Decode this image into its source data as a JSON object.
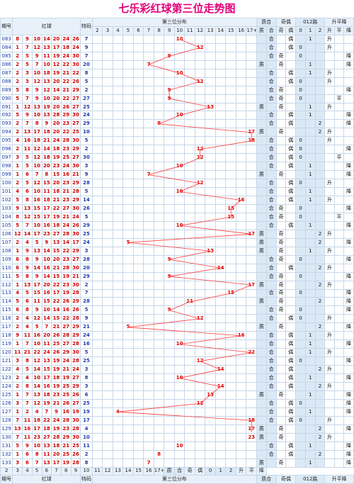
{
  "title": "七乐彩红球第三位走势图",
  "headers": {
    "issue": "期号",
    "red": "红球",
    "special": "特码",
    "dist": "第三位分布",
    "zhihe": "质合",
    "jiou": "奇偶",
    "lu": "012路",
    "trend": "升平降"
  },
  "subheaders": {
    "numbers": [
      "2",
      "3",
      "4",
      "5",
      "6",
      "7",
      "8",
      "9",
      "10",
      "11",
      "12",
      "13",
      "14",
      "15",
      "16",
      "17+"
    ],
    "zhihe": [
      "质",
      "合"
    ],
    "jiou": [
      "奇",
      "偶"
    ],
    "lu": [
      "0",
      "1",
      "2"
    ],
    "trend": [
      "升",
      "平",
      "降"
    ]
  },
  "rows": [
    {
      "issue": "083",
      "reds": [
        "8",
        "9",
        "10",
        "14",
        "20",
        "24",
        "26"
      ],
      "sp": "7",
      "pos": 10,
      "zh": "合",
      "jo": "偶",
      "lu": "1",
      "tr": "升"
    },
    {
      "issue": "084",
      "reds": [
        "1",
        "7",
        "12",
        "13",
        "17",
        "18",
        "24"
      ],
      "sp": "9",
      "pos": 12,
      "zh": "合",
      "jo": "偶",
      "lu": "0",
      "tr": "升"
    },
    {
      "issue": "085",
      "reds": [
        "2",
        "5",
        "9",
        "11",
        "19",
        "24",
        "30"
      ],
      "sp": "7",
      "pos": 9,
      "zh": "合",
      "jo": "奇",
      "lu": "0",
      "tr": "降"
    },
    {
      "issue": "086",
      "reds": [
        "2",
        "5",
        "7",
        "10",
        "12",
        "22",
        "30"
      ],
      "sp": "20",
      "pos": 7,
      "zh": "质",
      "jo": "奇",
      "lu": "1",
      "tr": "降"
    },
    {
      "issue": "087",
      "reds": [
        "2",
        "3",
        "10",
        "18",
        "19",
        "21",
        "22"
      ],
      "sp": "8",
      "pos": 10,
      "zh": "合",
      "jo": "偶",
      "lu": "1",
      "tr": "升"
    },
    {
      "issue": "088",
      "reds": [
        "2",
        "3",
        "12",
        "13",
        "20",
        "22",
        "26"
      ],
      "sp": "5",
      "pos": 12,
      "zh": "合",
      "jo": "偶",
      "lu": "0",
      "tr": "升"
    },
    {
      "issue": "089",
      "reds": [
        "5",
        "8",
        "9",
        "12",
        "14",
        "21",
        "29"
      ],
      "sp": "2",
      "pos": 9,
      "zh": "合",
      "jo": "奇",
      "lu": "0",
      "tr": "降"
    },
    {
      "issue": "090",
      "reds": [
        "5",
        "7",
        "9",
        "10",
        "20",
        "22",
        "27"
      ],
      "sp": "27",
      "pos": 9,
      "zh": "合",
      "jo": "奇",
      "lu": "0",
      "tr": "平"
    },
    {
      "issue": "091",
      "reds": [
        "1",
        "12",
        "13",
        "19",
        "20",
        "26",
        "27"
      ],
      "sp": "25",
      "pos": 13,
      "zh": "质",
      "jo": "奇",
      "lu": "1",
      "tr": "升"
    },
    {
      "issue": "092",
      "reds": [
        "5",
        "9",
        "10",
        "13",
        "28",
        "29",
        "30"
      ],
      "sp": "24",
      "pos": 10,
      "zh": "合",
      "jo": "偶",
      "lu": "1",
      "tr": "降"
    },
    {
      "issue": "093",
      "reds": [
        "2",
        "7",
        "8",
        "9",
        "20",
        "23",
        "27"
      ],
      "sp": "29",
      "pos": 8,
      "zh": "合",
      "jo": "偶",
      "lu": "2",
      "tr": "降"
    },
    {
      "issue": "094",
      "reds": [
        "2",
        "13",
        "17",
        "18",
        "20",
        "22",
        "25"
      ],
      "sp": "10",
      "pos": 17,
      "zh": "质",
      "jo": "奇",
      "lu": "2",
      "tr": "升"
    },
    {
      "issue": "095",
      "reds": [
        "4",
        "16",
        "18",
        "21",
        "24",
        "28",
        "30"
      ],
      "sp": "5",
      "pos": 18,
      "zh": "合",
      "jo": "偶",
      "lu": "0",
      "tr": "升"
    },
    {
      "issue": "096",
      "reds": [
        "2",
        "11",
        "12",
        "14",
        "18",
        "23",
        "29"
      ],
      "sp": "2",
      "pos": 12,
      "zh": "合",
      "jo": "偶",
      "lu": "0",
      "tr": "降"
    },
    {
      "issue": "097",
      "reds": [
        "3",
        "5",
        "12",
        "18",
        "19",
        "25",
        "27"
      ],
      "sp": "30",
      "pos": 12,
      "zh": "合",
      "jo": "偶",
      "lu": "0",
      "tr": "平"
    },
    {
      "issue": "098",
      "reds": [
        "1",
        "5",
        "10",
        "20",
        "23",
        "24",
        "30"
      ],
      "sp": "3",
      "pos": 10,
      "zh": "合",
      "jo": "偶",
      "lu": "1",
      "tr": "降"
    },
    {
      "issue": "099",
      "reds": [
        "1",
        "6",
        "7",
        "8",
        "15",
        "16",
        "21"
      ],
      "sp": "9",
      "pos": 7,
      "zh": "质",
      "jo": "奇",
      "lu": "1",
      "tr": "降"
    },
    {
      "issue": "100",
      "reds": [
        "2",
        "5",
        "12",
        "15",
        "20",
        "23",
        "29"
      ],
      "sp": "28",
      "pos": 12,
      "zh": "合",
      "jo": "偶",
      "lu": "0",
      "tr": "升"
    },
    {
      "issue": "101",
      "reds": [
        "4",
        "6",
        "10",
        "11",
        "18",
        "21",
        "28"
      ],
      "sp": "5",
      "pos": 10,
      "zh": "合",
      "jo": "偶",
      "lu": "1",
      "tr": "降"
    },
    {
      "issue": "102",
      "reds": [
        "5",
        "8",
        "16",
        "18",
        "21",
        "23",
        "29"
      ],
      "sp": "14",
      "pos": 16,
      "zh": "合",
      "jo": "偶",
      "lu": "1",
      "tr": "升"
    },
    {
      "issue": "103",
      "reds": [
        "9",
        "13",
        "15",
        "17",
        "22",
        "27",
        "30"
      ],
      "sp": "26",
      "pos": 15,
      "zh": "合",
      "jo": "奇",
      "lu": "0",
      "tr": "降"
    },
    {
      "issue": "104",
      "reds": [
        "8",
        "12",
        "15",
        "17",
        "19",
        "21",
        "24"
      ],
      "sp": "5",
      "pos": 15,
      "zh": "合",
      "jo": "奇",
      "lu": "0",
      "tr": "平"
    },
    {
      "issue": "105",
      "reds": [
        "5",
        "7",
        "10",
        "16",
        "18",
        "24",
        "26"
      ],
      "sp": "29",
      "pos": 10,
      "zh": "合",
      "jo": "偶",
      "lu": "1",
      "tr": "降"
    },
    {
      "issue": "106",
      "reds": [
        "12",
        "14",
        "17",
        "23",
        "27",
        "28",
        "30"
      ],
      "sp": "25",
      "pos": 17,
      "zh": "质",
      "jo": "奇",
      "lu": "2",
      "tr": "升"
    },
    {
      "issue": "107",
      "reds": [
        "2",
        "4",
        "5",
        "9",
        "13",
        "14",
        "17"
      ],
      "sp": "24",
      "pos": 5,
      "zh": "质",
      "jo": "奇",
      "lu": "2",
      "tr": "降"
    },
    {
      "issue": "108",
      "reds": [
        "1",
        "9",
        "13",
        "14",
        "15",
        "22",
        "29"
      ],
      "sp": "3",
      "pos": 13,
      "zh": "质",
      "jo": "奇",
      "lu": "1",
      "tr": "升"
    },
    {
      "issue": "109",
      "reds": [
        "6",
        "8",
        "9",
        "10",
        "20",
        "23",
        "27"
      ],
      "sp": "28",
      "pos": 9,
      "zh": "合",
      "jo": "奇",
      "lu": "0",
      "tr": "降"
    },
    {
      "issue": "110",
      "reds": [
        "6",
        "9",
        "14",
        "16",
        "21",
        "28",
        "30"
      ],
      "sp": "20",
      "pos": 14,
      "zh": "合",
      "jo": "偶",
      "lu": "2",
      "tr": "升"
    },
    {
      "issue": "111",
      "reds": [
        "5",
        "8",
        "9",
        "14",
        "15",
        "19",
        "21"
      ],
      "sp": "29",
      "pos": 9,
      "zh": "合",
      "jo": "奇",
      "lu": "0",
      "tr": "降"
    },
    {
      "issue": "112",
      "reds": [
        "1",
        "13",
        "17",
        "20",
        "22",
        "23",
        "30"
      ],
      "sp": "2",
      "pos": 17,
      "zh": "质",
      "jo": "奇",
      "lu": "2",
      "tr": "升"
    },
    {
      "issue": "113",
      "reds": [
        "4",
        "5",
        "15",
        "16",
        "17",
        "19",
        "28"
      ],
      "sp": "7",
      "pos": 15,
      "zh": "合",
      "jo": "奇",
      "lu": "0",
      "tr": "降"
    },
    {
      "issue": "114",
      "reds": [
        "5",
        "6",
        "11",
        "15",
        "22",
        "26",
        "29"
      ],
      "sp": "28",
      "pos": 11,
      "zh": "质",
      "jo": "奇",
      "lu": "2",
      "tr": "降"
    },
    {
      "issue": "115",
      "reds": [
        "6",
        "8",
        "9",
        "10",
        "14",
        "16",
        "26"
      ],
      "sp": "5",
      "pos": 9,
      "zh": "合",
      "jo": "奇",
      "lu": "0",
      "tr": "降"
    },
    {
      "issue": "116",
      "reds": [
        "2",
        "4",
        "12",
        "14",
        "15",
        "22",
        "28"
      ],
      "sp": "9",
      "pos": 12,
      "zh": "合",
      "jo": "偶",
      "lu": "0",
      "tr": "升"
    },
    {
      "issue": "117",
      "reds": [
        "2",
        "4",
        "5",
        "7",
        "21",
        "27",
        "29"
      ],
      "sp": "21",
      "pos": 5,
      "zh": "质",
      "jo": "奇",
      "lu": "2",
      "tr": "降"
    },
    {
      "issue": "118",
      "reds": [
        "9",
        "11",
        "16",
        "20",
        "26",
        "28",
        "29"
      ],
      "sp": "24",
      "pos": 16,
      "zh": "合",
      "jo": "偶",
      "lu": "1",
      "tr": "升"
    },
    {
      "issue": "119",
      "reds": [
        "1",
        "7",
        "10",
        "11",
        "25",
        "27",
        "28"
      ],
      "sp": "16",
      "pos": 10,
      "zh": "合",
      "jo": "偶",
      "lu": "1",
      "tr": "降"
    },
    {
      "issue": "120",
      "reds": [
        "11",
        "21",
        "22",
        "24",
        "26",
        "29",
        "30"
      ],
      "sp": "5",
      "pos": 22,
      "zh": "合",
      "jo": "偶",
      "lu": "1",
      "tr": "升"
    },
    {
      "issue": "121",
      "reds": [
        "3",
        "8",
        "12",
        "13",
        "19",
        "24",
        "28"
      ],
      "sp": "25",
      "pos": 12,
      "zh": "合",
      "jo": "偶",
      "lu": "0",
      "tr": "降"
    },
    {
      "issue": "122",
      "reds": [
        "4",
        "5",
        "14",
        "15",
        "19",
        "21",
        "24"
      ],
      "sp": "3",
      "pos": 14,
      "zh": "合",
      "jo": "偶",
      "lu": "2",
      "tr": "升"
    },
    {
      "issue": "123",
      "reds": [
        "2",
        "4",
        "10",
        "17",
        "18",
        "19",
        "27"
      ],
      "sp": "8",
      "pos": 10,
      "zh": "合",
      "jo": "偶",
      "lu": "1",
      "tr": "降"
    },
    {
      "issue": "124",
      "reds": [
        "2",
        "8",
        "14",
        "16",
        "19",
        "25",
        "29"
      ],
      "sp": "3",
      "pos": 14,
      "zh": "合",
      "jo": "偶",
      "lu": "2",
      "tr": "升"
    },
    {
      "issue": "125",
      "reds": [
        "1",
        "7",
        "13",
        "18",
        "23",
        "25",
        "26"
      ],
      "sp": "6",
      "pos": 13,
      "zh": "质",
      "jo": "奇",
      "lu": "1",
      "tr": "降"
    },
    {
      "issue": "126",
      "reds": [
        "3",
        "7",
        "12",
        "19",
        "21",
        "26",
        "27"
      ],
      "sp": "25",
      "pos": 12,
      "zh": "合",
      "jo": "偶",
      "lu": "0",
      "tr": "降"
    },
    {
      "issue": "127",
      "reds": [
        "1",
        "2",
        "4",
        "7",
        "9",
        "16",
        "19"
      ],
      "sp": "19",
      "pos": 4,
      "zh": "合",
      "jo": "偶",
      "lu": "1",
      "tr": "降"
    },
    {
      "issue": "128",
      "reds": [
        "7",
        "11",
        "18",
        "22",
        "24",
        "28",
        "30"
      ],
      "sp": "17",
      "pos": 18,
      "zh": "合",
      "jo": "偶",
      "lu": "0",
      "tr": "升"
    },
    {
      "issue": "129",
      "reds": [
        "13",
        "16",
        "17",
        "18",
        "19",
        "23",
        "28"
      ],
      "sp": "4",
      "pos": 17,
      "zh": "质",
      "jo": "奇",
      "lu": "2",
      "tr": "降"
    },
    {
      "issue": "130",
      "reds": [
        "7",
        "11",
        "23",
        "27",
        "28",
        "29",
        "30"
      ],
      "sp": "10",
      "pos": 23,
      "zh": "质",
      "jo": "奇",
      "lu": "2",
      "tr": "升"
    },
    {
      "issue": "131",
      "reds": [
        "5",
        "9",
        "10",
        "13",
        "18",
        "21",
        "25"
      ],
      "sp": "11",
      "pos": 10,
      "zh": "合",
      "jo": "偶",
      "lu": "1",
      "tr": "降"
    },
    {
      "issue": "132",
      "reds": [
        "1",
        "6",
        "8",
        "11",
        "20",
        "25",
        "26"
      ],
      "sp": "2",
      "pos": 8,
      "zh": "合",
      "jo": "偶",
      "lu": "2",
      "tr": "降"
    },
    {
      "issue": "133",
      "reds": [
        "3",
        "6",
        "7",
        "13",
        "17",
        "19",
        "28"
      ],
      "sp": "8",
      "pos": 7,
      "zh": "质",
      "jo": "奇",
      "lu": "1",
      "tr": "降"
    }
  ],
  "colors": {
    "red": "#d00000",
    "blue": "#1a3ea8",
    "line": "#ff3b3b",
    "header": "#e8f1fa",
    "grid": "#c7d7e8",
    "title": "#e0007a"
  }
}
